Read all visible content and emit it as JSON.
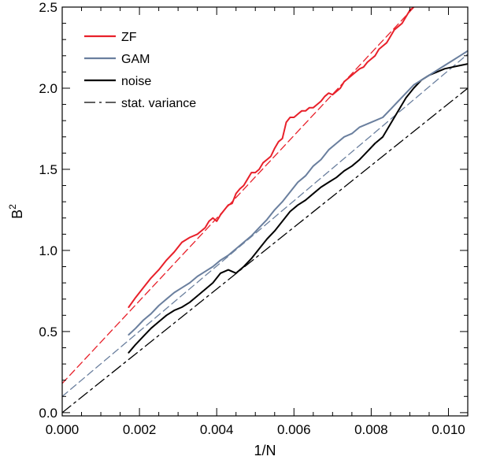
{
  "chart_data": {
    "type": "line",
    "xlabel": "1/N",
    "ylabel_base": "B",
    "ylabel_sup": "2",
    "xlim": [
      0.0,
      0.0105
    ],
    "ylim": [
      -0.02,
      2.5
    ],
    "x_ticks": [
      0.0,
      0.002,
      0.004,
      0.006,
      0.008,
      0.01
    ],
    "x_tick_labels": [
      "0.000",
      "0.002",
      "0.004",
      "0.006",
      "0.008",
      "0.010"
    ],
    "y_ticks": [
      0.0,
      0.5,
      1.0,
      1.5,
      2.0,
      2.5
    ],
    "y_tick_labels": [
      "0.0",
      "0.5",
      "1.0",
      "1.5",
      "2.0",
      "2.5"
    ],
    "grid": false,
    "legend_position": "top-left",
    "legend": [
      {
        "label": "ZF",
        "color": "#e8202a",
        "style": "solid"
      },
      {
        "label": "GAM",
        "color": "#6a7f9e",
        "style": "solid"
      },
      {
        "label": "noise",
        "color": "#000000",
        "style": "solid"
      },
      {
        "label": "stat. variance",
        "color": "#000000",
        "style": "dashdot"
      }
    ],
    "series": [
      {
        "name": "ZF",
        "color": "#e8202a",
        "style": "solid",
        "x": [
          0.00172,
          0.0019,
          0.0021,
          0.0023,
          0.0025,
          0.0027,
          0.0029,
          0.0031,
          0.0033,
          0.0035,
          0.0037,
          0.0038,
          0.0039,
          0.004,
          0.0041,
          0.0042,
          0.0043,
          0.0044,
          0.0045,
          0.0046,
          0.0047,
          0.0048,
          0.0049,
          0.005,
          0.0051,
          0.0052,
          0.0053,
          0.0054,
          0.0055,
          0.0056,
          0.0057,
          0.0058,
          0.0059,
          0.006,
          0.0061,
          0.0062,
          0.0063,
          0.0064,
          0.0065,
          0.0066,
          0.0067,
          0.0068,
          0.0069,
          0.007,
          0.0071,
          0.0072,
          0.0073,
          0.0074,
          0.0075,
          0.0076,
          0.0077,
          0.0078,
          0.0079,
          0.008,
          0.0081,
          0.0082,
          0.0083,
          0.0084,
          0.0085,
          0.0086,
          0.0087,
          0.0088,
          0.0089,
          0.009,
          0.00915
        ],
        "y": [
          0.65,
          0.71,
          0.77,
          0.83,
          0.88,
          0.94,
          0.99,
          1.05,
          1.08,
          1.1,
          1.14,
          1.18,
          1.2,
          1.18,
          1.22,
          1.25,
          1.28,
          1.29,
          1.35,
          1.38,
          1.4,
          1.44,
          1.48,
          1.48,
          1.5,
          1.54,
          1.56,
          1.58,
          1.63,
          1.67,
          1.69,
          1.79,
          1.82,
          1.82,
          1.84,
          1.86,
          1.86,
          1.88,
          1.88,
          1.9,
          1.92,
          1.95,
          1.97,
          1.96,
          1.98,
          2.0,
          2.04,
          2.06,
          2.08,
          2.1,
          2.12,
          2.13,
          2.16,
          2.18,
          2.2,
          2.24,
          2.26,
          2.28,
          2.32,
          2.36,
          2.38,
          2.4,
          2.44,
          2.48,
          2.51
        ]
      },
      {
        "name": "GAM",
        "color": "#6a7f9e",
        "style": "solid",
        "x": [
          0.00172,
          0.0019,
          0.0021,
          0.0023,
          0.0025,
          0.0027,
          0.0029,
          0.0031,
          0.0033,
          0.0035,
          0.0037,
          0.0039,
          0.0041,
          0.0043,
          0.0045,
          0.0047,
          0.0049,
          0.0051,
          0.0053,
          0.0055,
          0.0057,
          0.0059,
          0.0061,
          0.0063,
          0.0065,
          0.0067,
          0.0069,
          0.0071,
          0.0073,
          0.0075,
          0.0077,
          0.0079,
          0.0081,
          0.0083,
          0.0085,
          0.0087,
          0.0089,
          0.0091,
          0.0093,
          0.0095,
          0.0097,
          0.0099,
          0.0101,
          0.0103,
          0.0105
        ],
        "y": [
          0.48,
          0.52,
          0.57,
          0.61,
          0.66,
          0.7,
          0.74,
          0.77,
          0.8,
          0.84,
          0.87,
          0.9,
          0.94,
          0.97,
          1.01,
          1.05,
          1.09,
          1.14,
          1.19,
          1.25,
          1.3,
          1.36,
          1.42,
          1.46,
          1.52,
          1.56,
          1.62,
          1.66,
          1.7,
          1.72,
          1.76,
          1.78,
          1.8,
          1.82,
          1.87,
          1.92,
          1.97,
          2.02,
          2.05,
          2.08,
          2.11,
          2.14,
          2.17,
          2.2,
          2.23
        ]
      },
      {
        "name": "noise",
        "color": "#000000",
        "style": "solid",
        "x": [
          0.00172,
          0.0019,
          0.0021,
          0.0023,
          0.0025,
          0.0027,
          0.0029,
          0.0031,
          0.0033,
          0.0035,
          0.0037,
          0.0039,
          0.0041,
          0.0043,
          0.0045,
          0.0047,
          0.0049,
          0.0051,
          0.0053,
          0.0055,
          0.0057,
          0.0059,
          0.0061,
          0.0063,
          0.0065,
          0.0067,
          0.0069,
          0.0071,
          0.0073,
          0.0075,
          0.0077,
          0.0079,
          0.0081,
          0.0083,
          0.0085,
          0.0087,
          0.0089,
          0.0091,
          0.0093,
          0.0095,
          0.0097,
          0.0099,
          0.0101,
          0.0103,
          0.0105
        ],
        "y": [
          0.37,
          0.42,
          0.47,
          0.52,
          0.56,
          0.6,
          0.63,
          0.65,
          0.68,
          0.72,
          0.76,
          0.8,
          0.86,
          0.88,
          0.86,
          0.9,
          0.95,
          1.01,
          1.07,
          1.12,
          1.18,
          1.24,
          1.28,
          1.31,
          1.35,
          1.39,
          1.42,
          1.45,
          1.49,
          1.52,
          1.56,
          1.61,
          1.66,
          1.7,
          1.78,
          1.86,
          1.94,
          2.0,
          2.05,
          2.08,
          2.1,
          2.12,
          2.13,
          2.14,
          2.15
        ]
      },
      {
        "name": "ZF fit",
        "color": "#e8202a",
        "style": "dashed",
        "x": [
          0.0,
          0.00915
        ],
        "y": [
          0.18,
          2.51
        ]
      },
      {
        "name": "GAM fit",
        "color": "#6a7f9e",
        "style": "dashed",
        "x": [
          0.0,
          0.0105
        ],
        "y": [
          0.1,
          2.21
        ]
      },
      {
        "name": "stat. variance",
        "color": "#000000",
        "style": "dashdot",
        "x": [
          0.0,
          0.0105
        ],
        "y": [
          0.0,
          2.0
        ]
      }
    ]
  }
}
